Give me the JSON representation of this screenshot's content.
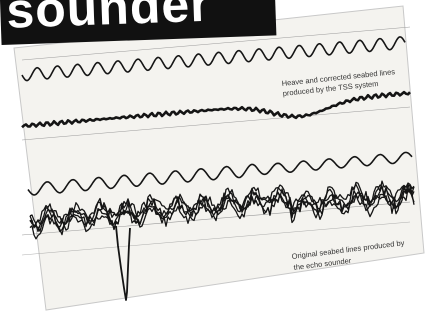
{
  "header": {
    "title": "sounder"
  },
  "annotations": {
    "heave_caption_line1": "Heave and corrected seabed lines",
    "heave_caption_line2": "produced by the TSS system",
    "original_caption_line1": "Original seabed lines produced by",
    "original_caption_line2": "the echo sounder"
  },
  "colors": {
    "header_bg": "#111111",
    "header_text": "#ffffff",
    "paper": "#f4f3ef",
    "trace": "#151515",
    "grid": "#9a9a9a"
  },
  "chart_data": {
    "type": "line",
    "series": [
      {
        "trace": "heave-top",
        "waveform": "sine",
        "cycles": 19
      },
      {
        "trace": "corrected-seabed",
        "waveform": "smooth-dip"
      },
      {
        "trace": "heave-lower",
        "waveform": "sine",
        "cycles": 15
      },
      {
        "trace": "original-seabed",
        "waveform": "noisy-band"
      },
      {
        "trace": "spike",
        "waveform": "single-drop"
      }
    ]
  }
}
